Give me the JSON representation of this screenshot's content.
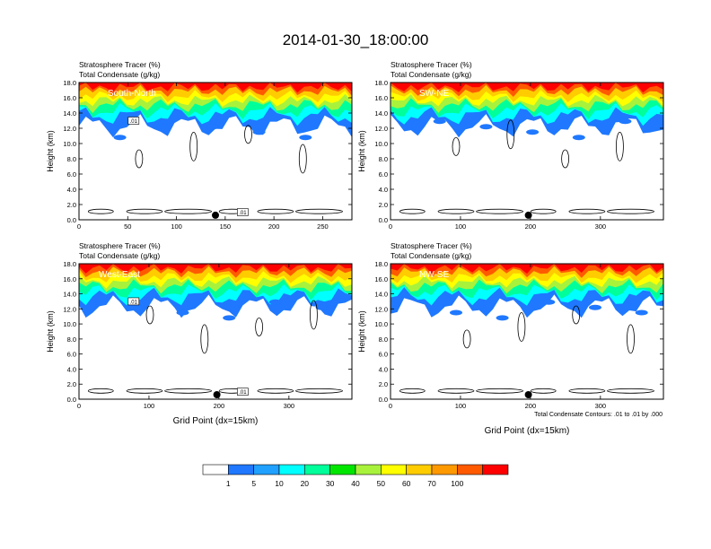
{
  "figure": {
    "title": "2014-01-30_18:00:00",
    "contour_note": "Total Condensate Contours: .01 to .01 by .000"
  },
  "colorbar": {
    "colors": [
      "#ffffff",
      "#1f78ff",
      "#20a0ff",
      "#00ffff",
      "#00ff9a",
      "#00e600",
      "#a8f23c",
      "#ffff00",
      "#ffcc00",
      "#ff9900",
      "#ff5a00",
      "#ff0000"
    ],
    "labels": [
      "1",
      "5",
      "10",
      "20",
      "30",
      "40",
      "50",
      "60",
      "70",
      "100"
    ]
  },
  "chart_data": [
    {
      "type": "heatmap",
      "label": "South-North",
      "title_line1": "Stratosphere Tracer   (%)",
      "title_line2": "Total Condensate   (g/kg)",
      "ylabel": "Height (km)",
      "xlabel": "",
      "xlim": [
        0,
        280
      ],
      "ylim": [
        0,
        18
      ],
      "xticks": [
        0,
        50,
        100,
        150,
        200,
        250
      ],
      "yticks": [
        "0.0",
        "2.0",
        "4.0",
        "6.0",
        "8.0",
        "10.0",
        "12.0",
        "14.0",
        "16.0",
        "18.0"
      ],
      "marker_x": 140,
      "contour_labels": [
        ".01",
        ".01"
      ]
    },
    {
      "type": "heatmap",
      "label": "SW-NE",
      "title_line1": "Stratosphere Tracer   (%)",
      "title_line2": "Total Condensate   (g/kg)",
      "ylabel": "Height (km)",
      "xlabel": "",
      "xlim": [
        0,
        390
      ],
      "ylim": [
        0,
        18
      ],
      "xticks": [
        0,
        100,
        200,
        300
      ],
      "yticks": [
        "0.0",
        "2.0",
        "4.0",
        "6.0",
        "8.0",
        "10.0",
        "12.0",
        "14.0",
        "16.0",
        "18.0"
      ],
      "marker_x": 197,
      "contour_labels": []
    },
    {
      "type": "heatmap",
      "label": "West-East",
      "title_line1": "Stratosphere Tracer   (%)",
      "title_line2": "Total Condensate   (g/kg)",
      "ylabel": "Height (km)",
      "xlabel": "Grid Point (dx=15km)",
      "xlim": [
        0,
        390
      ],
      "ylim": [
        0,
        18
      ],
      "xticks": [
        0,
        100,
        200,
        300
      ],
      "yticks": [
        "0.0",
        "2.0",
        "4.0",
        "6.0",
        "8.0",
        "10.0",
        "12.0",
        "14.0",
        "16.0",
        "18.0"
      ],
      "marker_x": 197,
      "contour_labels": [
        ".01",
        ".01"
      ]
    },
    {
      "type": "heatmap",
      "label": "NW-SE",
      "title_line1": "Stratosphere Tracer   (%)",
      "title_line2": "Total Condensate   (g/kg)",
      "ylabel": "Height (km)",
      "xlabel": "Grid Point (dx=15km)",
      "xlim": [
        0,
        390
      ],
      "ylim": [
        0,
        18
      ],
      "xticks": [
        0,
        100,
        200,
        300
      ],
      "yticks": [
        "0.0",
        "2.0",
        "4.0",
        "6.0",
        "8.0",
        "10.0",
        "12.0",
        "14.0",
        "16.0",
        "18.0"
      ],
      "marker_x": 197,
      "contour_labels": []
    }
  ]
}
